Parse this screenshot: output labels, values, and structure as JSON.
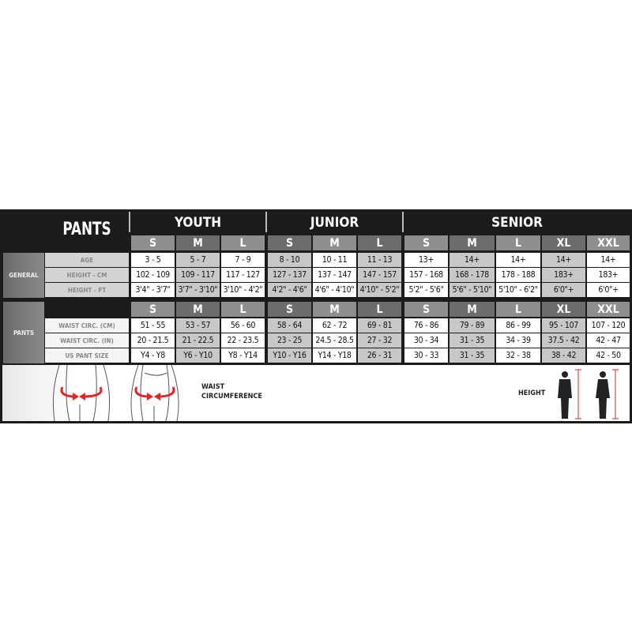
{
  "title": "PANTS",
  "groups": [
    {
      "name": "YOUTH",
      "sizes": [
        "S",
        "M",
        "L"
      ]
    },
    {
      "name": "JUNIOR",
      "sizes": [
        "S",
        "M",
        "L"
      ]
    },
    {
      "name": "SENIOR",
      "sizes": [
        "S",
        "M",
        "L",
        "XL",
        "XXL"
      ]
    }
  ],
  "sections": [
    {
      "label": "GENERAL",
      "rows": [
        {
          "label": "AGE",
          "values": [
            "3 - 5",
            "5 - 7",
            "7 - 9",
            "8 - 10",
            "10 - 11",
            "11 - 13",
            "13+",
            "14+",
            "14+",
            "14+",
            "14+"
          ]
        },
        {
          "label": "HEIGHT - CM",
          "values": [
            "102 - 109",
            "109 - 117",
            "117 - 127",
            "127 - 137",
            "137 - 147",
            "147 - 157",
            "157 - 168",
            "168 - 178",
            "178 - 188",
            "183+",
            "183+"
          ]
        },
        {
          "label": "HEIGHT - FT",
          "values": [
            "3'4\" - 3'7\"",
            "3'7\" - 3'10\"",
            "3'10\" - 4'2\"",
            "4'2\" - 4'6\"",
            "4'6\" - 4'10\"",
            "4'10\" - 5'2\"",
            "5'2\" - 5'6\"",
            "5'6\" - 5'10\"",
            "5'10\" - 6'2\"",
            "6'0\"+",
            "6'0\"+"
          ]
        }
      ]
    },
    {
      "label": "PANTS",
      "rows": [
        {
          "label": "WAIST CIRC. (CM)",
          "values": [
            "51 - 55",
            "53 - 57",
            "56 - 60",
            "58 - 64",
            "62 - 72",
            "69 - 81",
            "76 - 86",
            "79 - 89",
            "86 - 99",
            "95 - 107",
            "107 - 120"
          ]
        },
        {
          "label": "WAIST CIRC. (IN)",
          "values": [
            "20 - 21.5",
            "21 - 22.5",
            "22 - 23.5",
            "23 - 25",
            "24.5 - 28.5",
            "27 - 32",
            "30 - 34",
            "31 - 35",
            "34 - 39",
            "37.5 - 42",
            "42 - 47"
          ]
        },
        {
          "label": "US PANT SIZE",
          "values": [
            "Y4 - Y8",
            "Y6 - Y10",
            "Y8 - Y14",
            "Y10 - Y16",
            "Y14 - Y18",
            "26 - 31",
            "30 - 33",
            "31 - 35",
            "32 - 38",
            "38 - 42",
            "42 - 50"
          ]
        }
      ]
    }
  ],
  "legend": {
    "waist_line1": "WAIST",
    "waist_line2": "CIRCUMFERENCE",
    "height": "HEIGHT"
  },
  "colors": {
    "arrow": "#e0252b",
    "background": "#1c1b1b"
  }
}
